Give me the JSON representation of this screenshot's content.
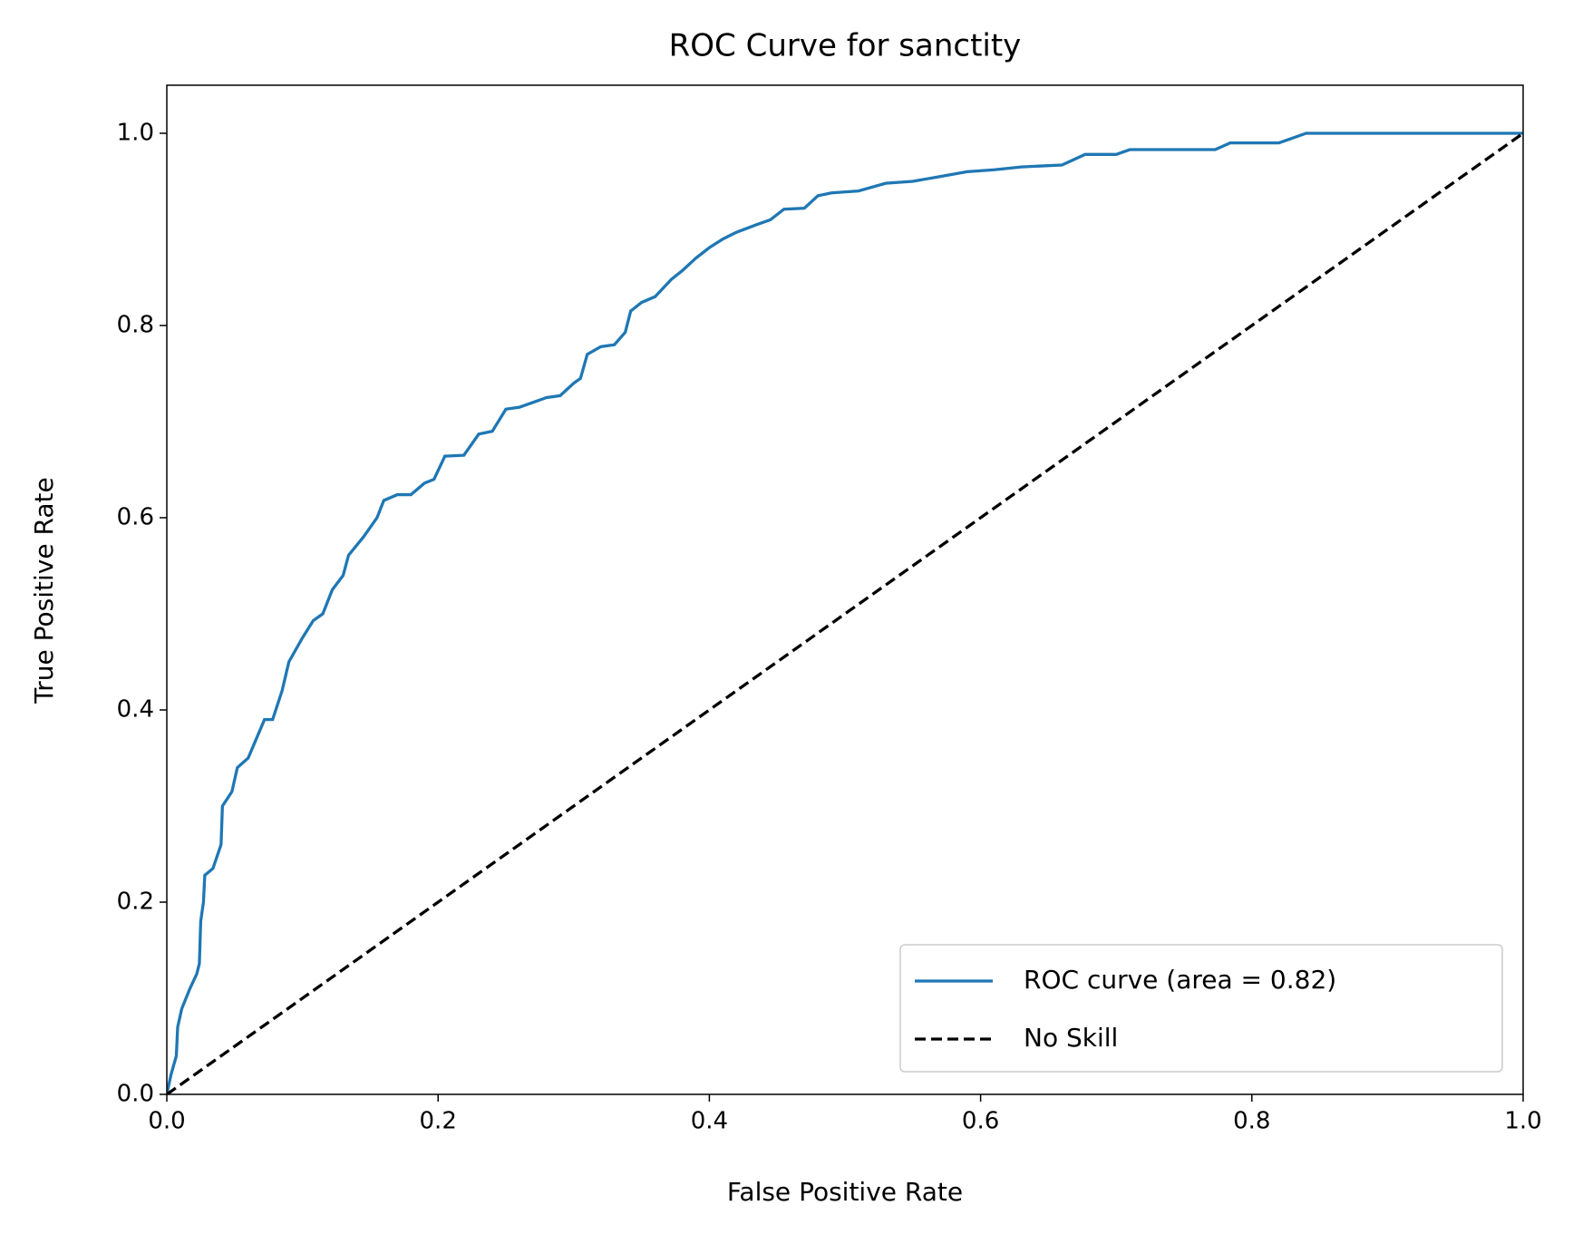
{
  "chart_data": {
    "type": "line",
    "title": "ROC Curve for sanctity",
    "x_label": "False Positive Rate",
    "y_label": "True Positive Rate",
    "xlim": [
      0,
      1
    ],
    "ylim": [
      0,
      1.05
    ],
    "xticks": [
      {
        "value": 0,
        "label": "0.0"
      },
      0.2,
      0.4,
      0.6,
      0.8,
      {
        "value": 1,
        "label": "1.0"
      }
    ],
    "yticks": [
      {
        "value": 0,
        "label": "0.0"
      },
      0.2,
      0.4,
      0.6,
      0.8,
      {
        "value": 1,
        "label": "1.0"
      }
    ],
    "legend": "lower right",
    "grid": false,
    "series": [
      {
        "name": "ROC curve (area = 0.82)",
        "color": "#1f77b4",
        "dash": "solid",
        "x": [
          0,
          0.003,
          0.007,
          0.008,
          0.011,
          0.017,
          0.022,
          0.024,
          0.025,
          0.027,
          0.028,
          0.034,
          0.04,
          0.041,
          0.048,
          0.052,
          0.06,
          0.066,
          0.072,
          0.078,
          0.085,
          0.09,
          0.1,
          0.108,
          0.115,
          0.122,
          0.13,
          0.134,
          0.145,
          0.155,
          0.16,
          0.17,
          0.18,
          0.19,
          0.197,
          0.205,
          0.219,
          0.23,
          0.24,
          0.25,
          0.26,
          0.27,
          0.28,
          0.29,
          0.3,
          0.305,
          0.31,
          0.32,
          0.33,
          0.338,
          0.342,
          0.35,
          0.36,
          0.372,
          0.38,
          0.39,
          0.4,
          0.41,
          0.42,
          0.435,
          0.445,
          0.455,
          0.47,
          0.48,
          0.49,
          0.51,
          0.53,
          0.55,
          0.57,
          0.59,
          0.61,
          0.63,
          0.66,
          0.677,
          0.7,
          0.71,
          0.773,
          0.784,
          0.82,
          0.83,
          0.84,
          1.0
        ],
        "values": [
          0,
          0.02,
          0.04,
          0.07,
          0.089,
          0.11,
          0.125,
          0.136,
          0.18,
          0.2,
          0.228,
          0.235,
          0.26,
          0.3,
          0.315,
          0.34,
          0.35,
          0.37,
          0.39,
          0.39,
          0.42,
          0.45,
          0.475,
          0.493,
          0.5,
          0.525,
          0.54,
          0.561,
          0.58,
          0.6,
          0.618,
          0.624,
          0.624,
          0.636,
          0.64,
          0.664,
          0.665,
          0.687,
          0.69,
          0.713,
          0.715,
          0.72,
          0.725,
          0.727,
          0.74,
          0.745,
          0.77,
          0.778,
          0.78,
          0.793,
          0.815,
          0.824,
          0.83,
          0.848,
          0.857,
          0.87,
          0.881,
          0.89,
          0.897,
          0.905,
          0.91,
          0.921,
          0.922,
          0.935,
          0.938,
          0.94,
          0.948,
          0.95,
          0.955,
          0.96,
          0.962,
          0.965,
          0.967,
          0.978,
          0.978,
          0.983,
          0.983,
          0.99,
          0.99,
          0.995,
          1.0,
          1.0
        ]
      },
      {
        "name": "No Skill",
        "color": "#000000",
        "dash": "dashed",
        "x": [
          0,
          1
        ],
        "values": [
          0,
          1
        ]
      }
    ]
  }
}
